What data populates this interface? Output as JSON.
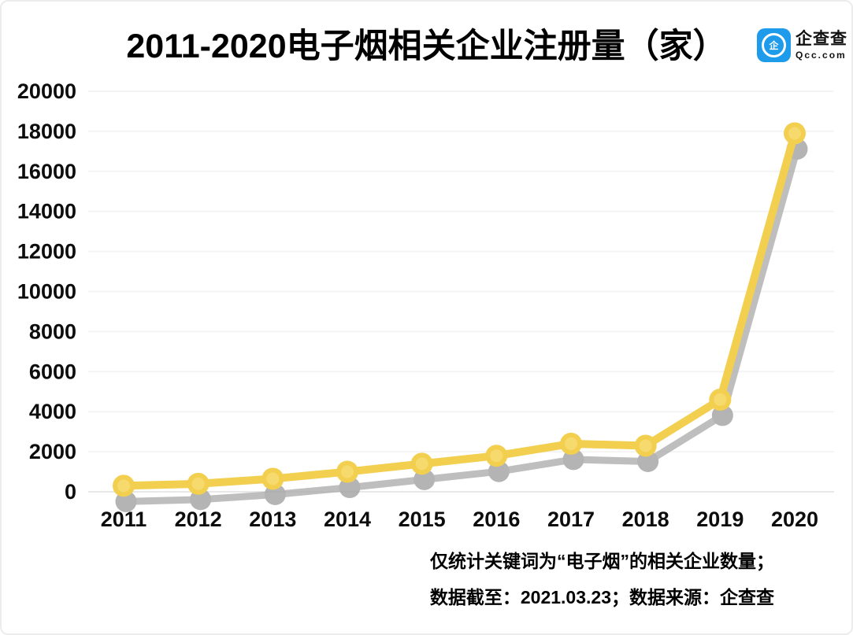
{
  "header": {
    "title": "2011-2020电子烟相关企业注册量（家）",
    "logo": {
      "icon": "qcc-logo",
      "glyph": "企",
      "name": "企查查",
      "domain": "Qcc.com",
      "brand_color": "#1e9bea"
    }
  },
  "chart_data": {
    "type": "line",
    "title": "2011-2020电子烟相关企业注册量（家）",
    "categories": [
      "2011",
      "2012",
      "2013",
      "2014",
      "2015",
      "2016",
      "2017",
      "2018",
      "2019",
      "2020"
    ],
    "series": [
      {
        "name": "电子烟相关企业注册量（家）",
        "values": [
          300,
          400,
          650,
          1000,
          1400,
          1800,
          2400,
          2300,
          4600,
          17900
        ]
      }
    ],
    "xlabel": "",
    "ylabel": "",
    "ylim": [
      0,
      20000
    ],
    "yticks": [
      0,
      2000,
      4000,
      6000,
      8000,
      10000,
      12000,
      14000,
      16000,
      18000,
      20000
    ],
    "grid": true,
    "legend_position": "none",
    "line_color": "#f2cf4e",
    "marker_center_color": "#f6da6d",
    "shadow_color": "#aeaeae",
    "shadow_marker_color": "#a2a2a2",
    "gridline_color": "#f4f4f4",
    "zeroline_color": "#e8e8e8",
    "label_color": "#0d0d0d"
  },
  "footnote": {
    "line1": "仅统计关键词为“电子烟”的相关企业数量；",
    "line2": "数据截至：2021.03.23；数据来源：企查查"
  }
}
